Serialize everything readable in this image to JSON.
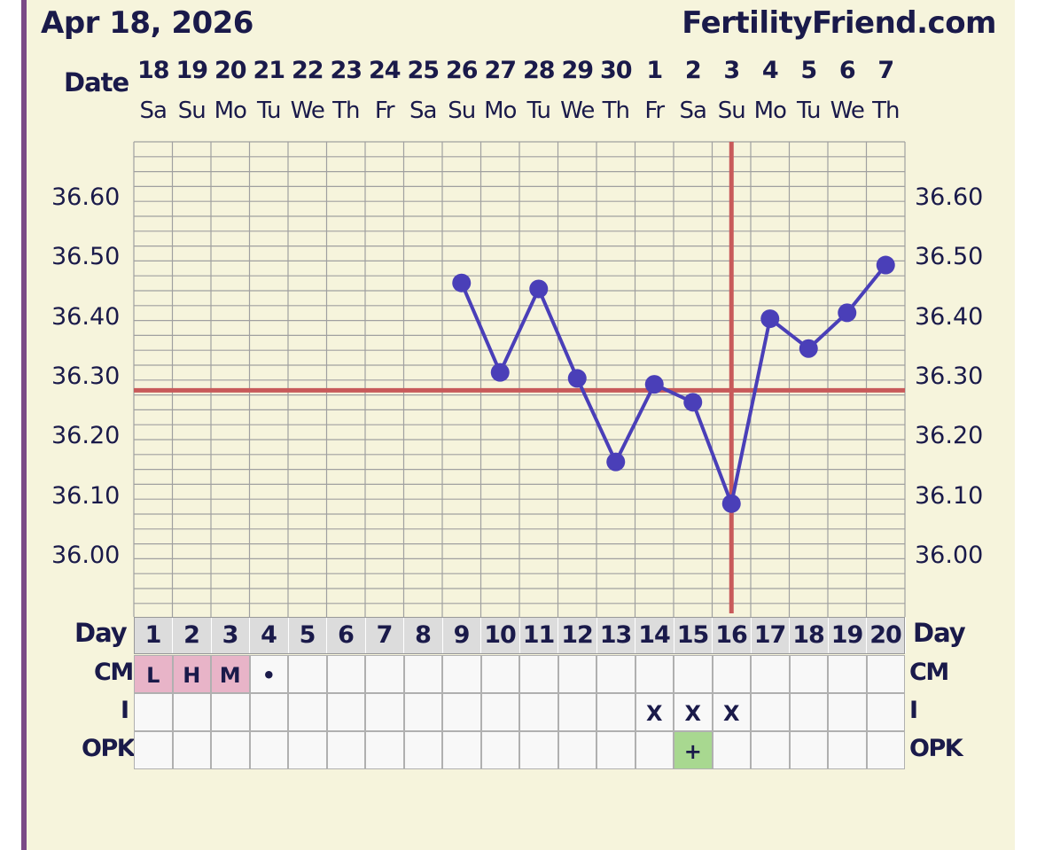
{
  "header": {
    "date": "Apr 18, 2026",
    "site": "FertilityFriend.com"
  },
  "labels": {
    "date": "Date",
    "day": "Day",
    "cm": "CM",
    "intercourse": "I",
    "opk": "OPK"
  },
  "colors": {
    "line": "#4a3fb8",
    "coverline": "#c85a5a",
    "grid": "#a0a0a0",
    "background": "#f6f4dc",
    "cm_fill": "#e8b4c8",
    "opk_fill": "#a8d890"
  },
  "chart_data": {
    "type": "line",
    "dates": [
      "18",
      "19",
      "20",
      "21",
      "22",
      "23",
      "24",
      "25",
      "26",
      "27",
      "28",
      "29",
      "30",
      "1",
      "2",
      "3",
      "4",
      "5",
      "6",
      "7"
    ],
    "weekdays": [
      "Sa",
      "Su",
      "Mo",
      "Tu",
      "We",
      "Th",
      "Fr",
      "Sa",
      "Su",
      "Mo",
      "Tu",
      "We",
      "Th",
      "Fr",
      "Sa",
      "Su",
      "Mo",
      "Tu",
      "We",
      "Th"
    ],
    "cycle_days": [
      "1",
      "2",
      "3",
      "4",
      "5",
      "6",
      "7",
      "8",
      "9",
      "10",
      "11",
      "12",
      "13",
      "14",
      "15",
      "16",
      "17",
      "18",
      "19",
      "20"
    ],
    "yticks": [
      "36.60",
      "36.50",
      "36.40",
      "36.30",
      "36.20",
      "36.10",
      "36.00"
    ],
    "ylim": [
      35.94,
      36.69
    ],
    "temperatures": [
      null,
      null,
      null,
      null,
      null,
      null,
      null,
      null,
      36.46,
      36.31,
      36.45,
      36.3,
      36.16,
      36.29,
      36.26,
      36.09,
      36.4,
      36.35,
      36.41,
      36.49
    ],
    "coverline": 36.28,
    "ovulation_day": 16,
    "cm": [
      "L",
      "H",
      "M",
      "•",
      "",
      "",
      "",
      "",
      "",
      "",
      "",
      "",
      "",
      "",
      "",
      "",
      "",
      "",
      "",
      ""
    ],
    "intercourse": [
      "",
      "",
      "",
      "",
      "",
      "",
      "",
      "",
      "",
      "",
      "",
      "",
      "",
      "X",
      "X",
      "X",
      "",
      "",
      "",
      ""
    ],
    "opk": [
      "",
      "",
      "",
      "",
      "",
      "",
      "",
      "",
      "",
      "",
      "",
      "",
      "",
      "",
      "+",
      "",
      "",
      "",
      "",
      ""
    ]
  }
}
